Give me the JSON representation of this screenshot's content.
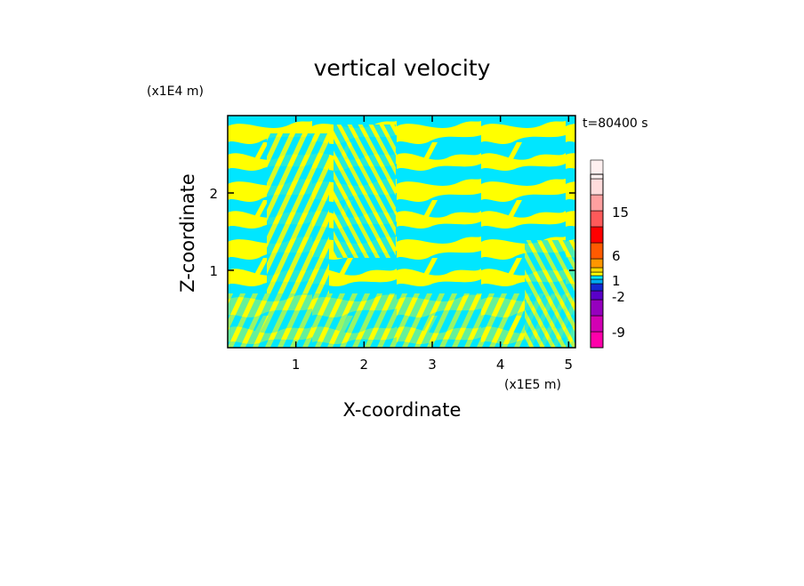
{
  "chart_data": {
    "type": "heatmap",
    "title": "vertical velocity",
    "xlabel": "X-coordinate",
    "ylabel": "Z-coordinate",
    "x_unit": "(x1E5 m)",
    "y_unit": "(x1E4 m)",
    "time_label": "t=80400 s",
    "xlim": [
      0,
      5.1
    ],
    "ylim": [
      0,
      3.0
    ],
    "x_ticks": [
      "1",
      "2",
      "3",
      "4",
      "5"
    ],
    "y_ticks": [
      "1",
      "2"
    ],
    "x_tick_values": [
      1,
      2,
      3,
      4,
      5
    ],
    "y_tick_values": [
      1,
      2
    ],
    "field_colors": {
      "negative": "#00e6ff",
      "positive": "#ffff00"
    },
    "colorbar": {
      "labels": [
        "15",
        "6",
        "1",
        "-2",
        "-9"
      ],
      "levels": [
        {
          "color": "#ff00aa"
        },
        {
          "color": "#d200b4"
        },
        {
          "color": "#9600be"
        },
        {
          "color": "#5a00c8"
        },
        {
          "color": "#1428d2"
        },
        {
          "color": "#00aaf0"
        },
        {
          "color": "#00e6ff"
        },
        {
          "color": "#ffff00"
        },
        {
          "color": "#ffdc00"
        },
        {
          "color": "#ff9600"
        },
        {
          "color": "#ff5a00"
        },
        {
          "color": "#ff0000"
        },
        {
          "color": "#ff5a5a"
        },
        {
          "color": "#ffa0a0"
        },
        {
          "color": "#ffdcdc"
        },
        {
          "color": "#fff0f0"
        }
      ]
    }
  }
}
